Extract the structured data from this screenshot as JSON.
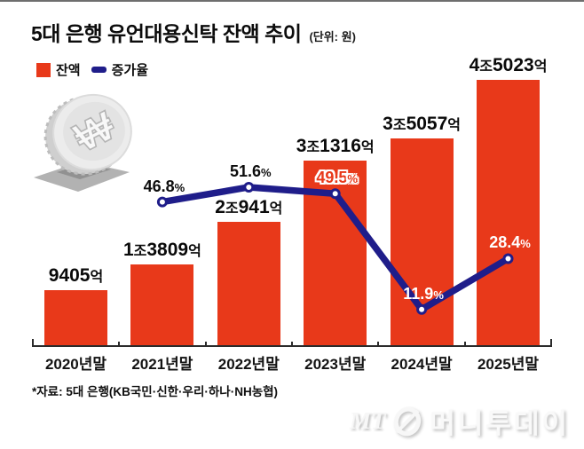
{
  "header": {
    "title": "5대 은행 유언대용신탁 잔액 추이",
    "unit_note": "(단위: 원)"
  },
  "legend": [
    {
      "label": "잔액",
      "type": "bar",
      "color": "#e8391a"
    },
    {
      "label": "증가율",
      "type": "line",
      "color": "#1f1d8a"
    }
  ],
  "chart_data": {
    "type": "combo",
    "title": "5대 은행 유언대용신탁 잔액 추이",
    "unit_note": "(단위: 원)",
    "categories": [
      "2020년말",
      "2021년말",
      "2022년말",
      "2023년말",
      "2024년말",
      "2025년말"
    ],
    "series": [
      {
        "name": "잔액",
        "type": "bar",
        "unit": "억 원",
        "values": [
          9405,
          13809,
          20941,
          31316,
          35057,
          45023
        ],
        "labels": [
          "9405억",
          "1조3809억",
          "2조941억",
          "3조1316억",
          "3조5057억",
          "4조5023억"
        ],
        "color": "#e8391a"
      },
      {
        "name": "증가율",
        "type": "line",
        "unit": "%",
        "values": [
          null,
          46.8,
          51.6,
          49.5,
          11.9,
          28.4
        ],
        "labels": [
          "",
          "46.8%",
          "51.6%",
          "49.5%",
          "11.9%",
          "28.4%"
        ],
        "color": "#1f1d8a",
        "point_label_styles": [
          "",
          "dark",
          "dark",
          "accent",
          "white",
          "white"
        ]
      }
    ],
    "ylim_bar": [
      0,
      47000
    ],
    "ylim_line_pct": [
      0,
      56
    ],
    "grid": false,
    "legend_position": "top-left"
  },
  "source_note": "*자료: 5대 은행(KB국민·신한·우리·하나·NH농협)",
  "logo": {
    "prefix": "MT",
    "name": "머니투데이"
  },
  "icons": {
    "coin": "won-coin-in-slot",
    "logo_mark": "mt-circle-slash"
  },
  "colors": {
    "bar": "#e8391a",
    "line": "#1f1d8a",
    "axis": "#2b2b2b"
  }
}
